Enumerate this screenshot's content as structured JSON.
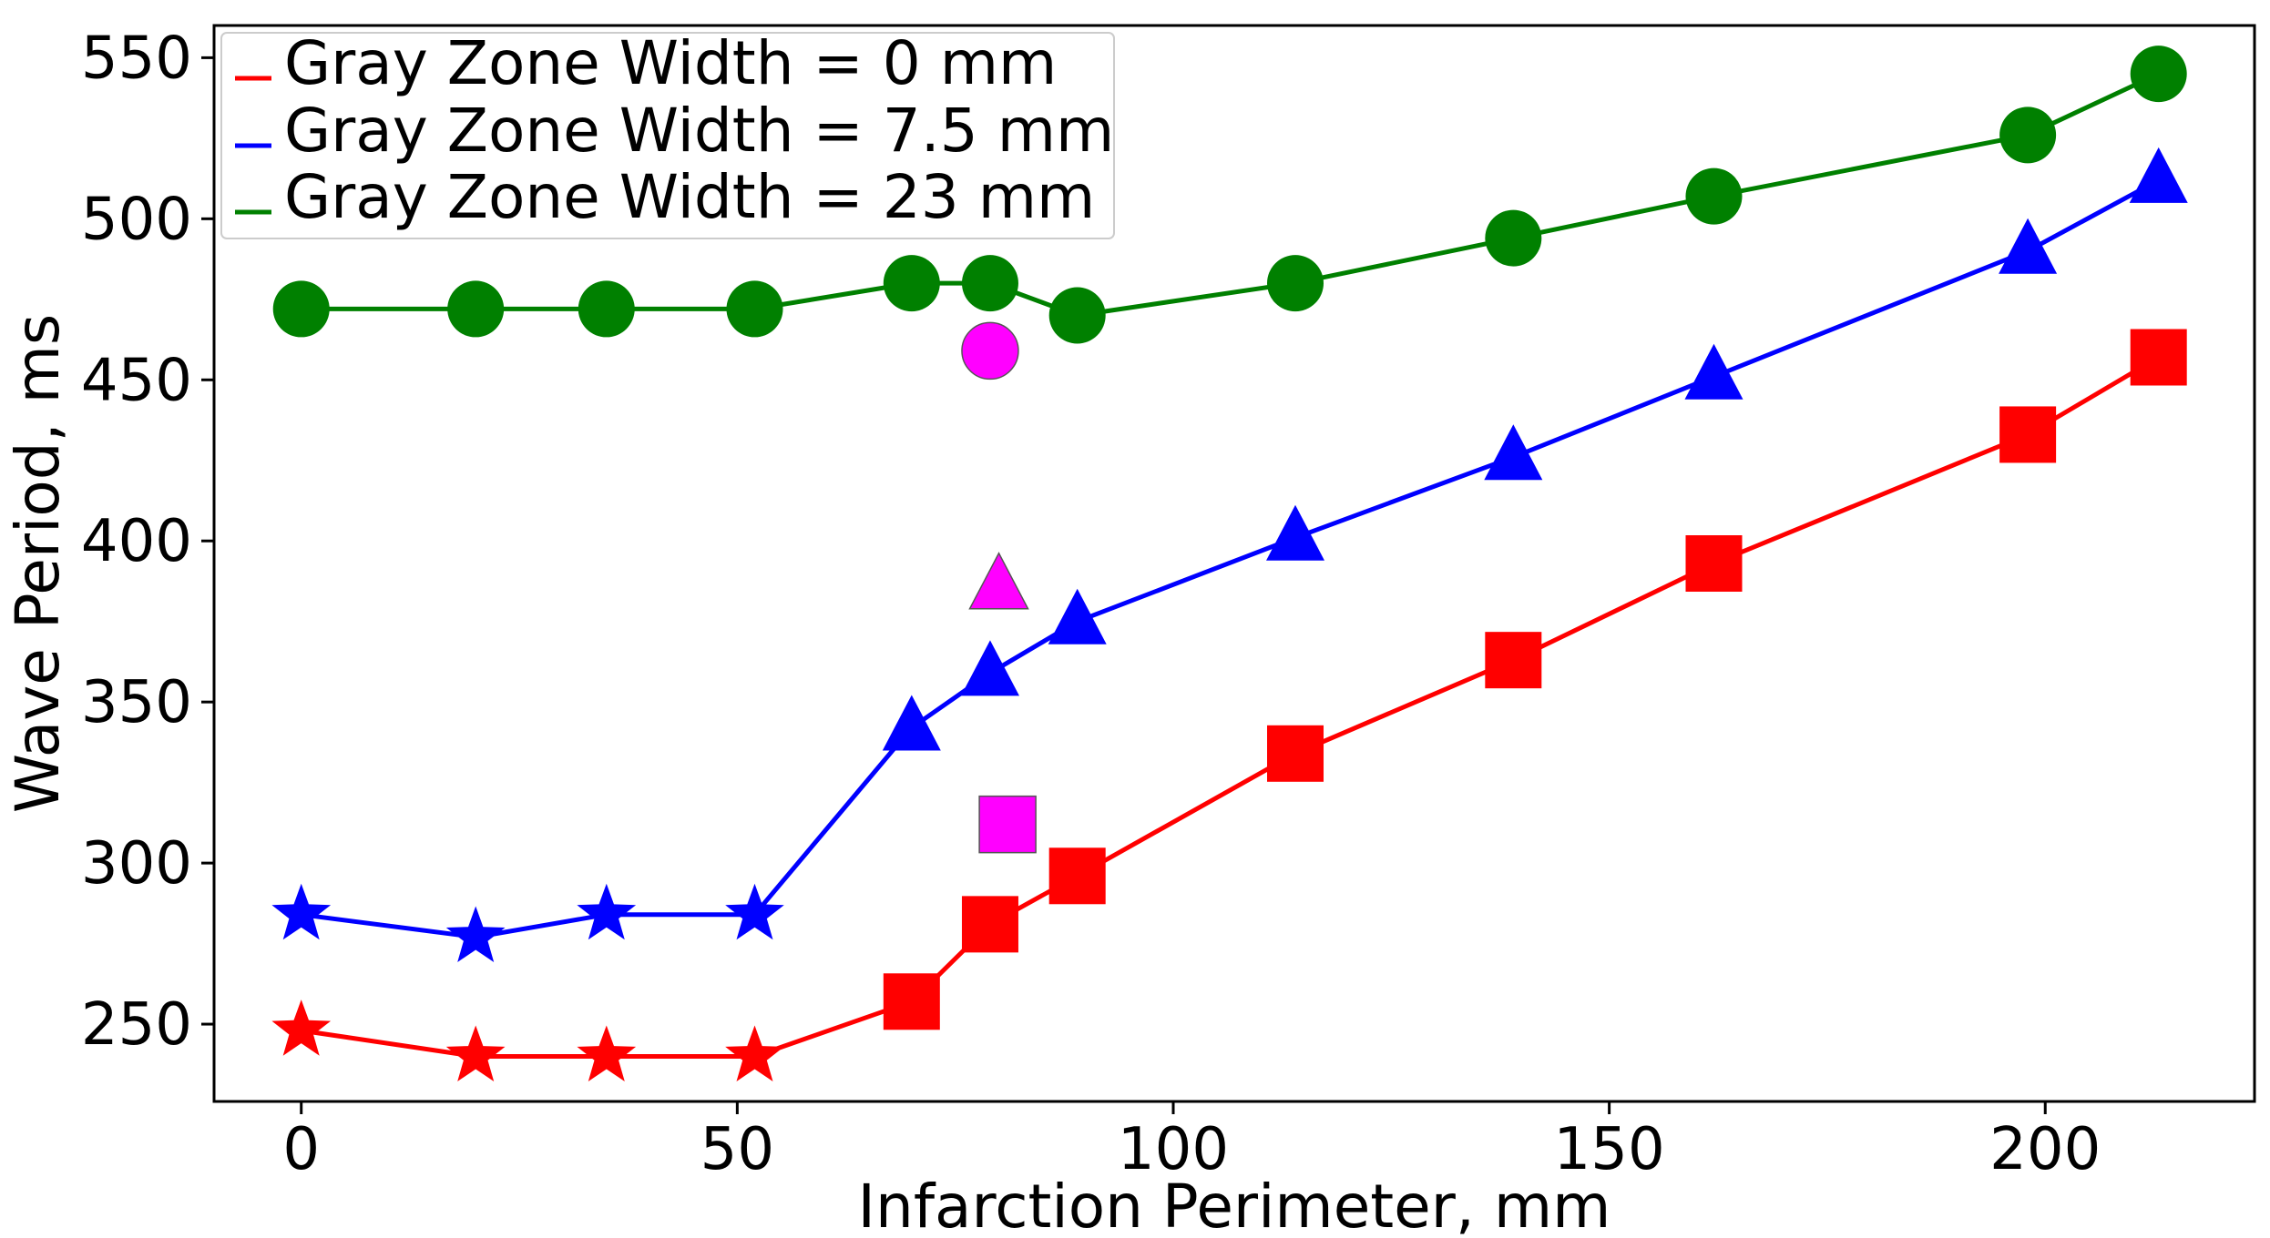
{
  "chart_data": {
    "type": "line",
    "title": "",
    "xlabel": "Infarction Perimeter, mm",
    "ylabel": "Wave Period, ms",
    "xlim": [
      -10,
      224
    ],
    "ylim": [
      226,
      560
    ],
    "xticks": [
      0,
      50,
      100,
      150,
      200
    ],
    "yticks": [
      250,
      300,
      350,
      400,
      450,
      500,
      550
    ],
    "grid": false,
    "legend_position": "top-left",
    "series": [
      {
        "name": "Gray Zone Width = 0 mm",
        "color": "#ff0000",
        "points": [
          {
            "x": 0,
            "y": 248,
            "marker": "star"
          },
          {
            "x": 20,
            "y": 240,
            "marker": "star"
          },
          {
            "x": 35,
            "y": 240,
            "marker": "star"
          },
          {
            "x": 52,
            "y": 240,
            "marker": "star"
          },
          {
            "x": 70,
            "y": 257,
            "marker": "square"
          },
          {
            "x": 79,
            "y": 281,
            "marker": "square"
          },
          {
            "x": 89,
            "y": 296,
            "marker": "square"
          },
          {
            "x": 114,
            "y": 334,
            "marker": "square"
          },
          {
            "x": 139,
            "y": 363,
            "marker": "square"
          },
          {
            "x": 162,
            "y": 393,
            "marker": "square"
          },
          {
            "x": 198,
            "y": 433,
            "marker": "square"
          },
          {
            "x": 213,
            "y": 457,
            "marker": "square"
          }
        ]
      },
      {
        "name": "Gray Zone Width = 7.5 mm",
        "color": "#0000ff",
        "points": [
          {
            "x": 0,
            "y": 284,
            "marker": "star"
          },
          {
            "x": 20,
            "y": 277,
            "marker": "star"
          },
          {
            "x": 35,
            "y": 284,
            "marker": "star"
          },
          {
            "x": 52,
            "y": 284,
            "marker": "star"
          },
          {
            "x": 70,
            "y": 342,
            "marker": "triangle"
          },
          {
            "x": 79,
            "y": 359,
            "marker": "triangle"
          },
          {
            "x": 89,
            "y": 375,
            "marker": "triangle"
          },
          {
            "x": 114,
            "y": 401,
            "marker": "triangle"
          },
          {
            "x": 139,
            "y": 426,
            "marker": "triangle"
          },
          {
            "x": 162,
            "y": 451,
            "marker": "triangle"
          },
          {
            "x": 198,
            "y": 490,
            "marker": "triangle"
          },
          {
            "x": 213,
            "y": 512,
            "marker": "triangle"
          }
        ]
      },
      {
        "name": "Gray Zone Width = 23 mm",
        "color": "#008000",
        "points": [
          {
            "x": 0,
            "y": 472,
            "marker": "circle"
          },
          {
            "x": 20,
            "y": 472,
            "marker": "circle"
          },
          {
            "x": 35,
            "y": 472,
            "marker": "circle"
          },
          {
            "x": 52,
            "y": 472,
            "marker": "circle"
          },
          {
            "x": 70,
            "y": 480,
            "marker": "circle"
          },
          {
            "x": 79,
            "y": 480,
            "marker": "circle"
          },
          {
            "x": 89,
            "y": 470,
            "marker": "circle"
          },
          {
            "x": 114,
            "y": 480,
            "marker": "circle"
          },
          {
            "x": 139,
            "y": 494,
            "marker": "circle"
          },
          {
            "x": 162,
            "y": 507,
            "marker": "circle"
          },
          {
            "x": 198,
            "y": 526,
            "marker": "circle"
          },
          {
            "x": 213,
            "y": 545,
            "marker": "circle"
          }
        ]
      }
    ],
    "highlight_points": [
      {
        "x": 79,
        "y": 459,
        "marker": "circle",
        "color": "#ff00ff"
      },
      {
        "x": 80,
        "y": 386,
        "marker": "triangle",
        "color": "#ff00ff"
      },
      {
        "x": 81,
        "y": 312,
        "marker": "square",
        "color": "#ff00ff"
      }
    ]
  }
}
